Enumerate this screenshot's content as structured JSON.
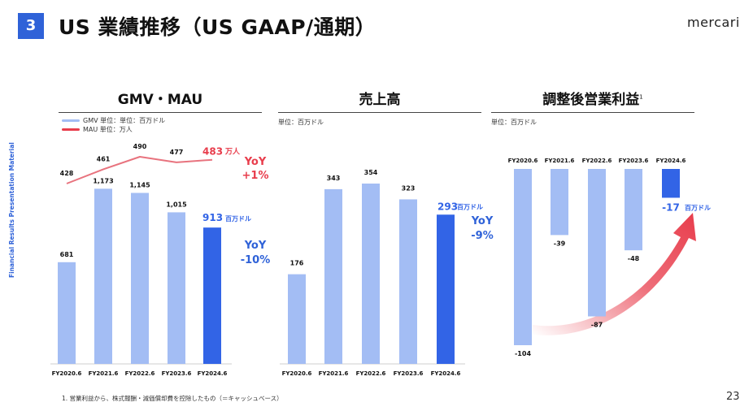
{
  "header": {
    "section_number": "3",
    "title": "US 業績推移（US GAAP/通期）",
    "logo": "mercari"
  },
  "side_label": "Financial Results Presentation Material",
  "footnote": "1. 営業利益から、株式報酬・減価償却費を控除したもの（＝キャッシュベース）",
  "page_number": "23",
  "colors": {
    "bar_light": "#a3bdf4",
    "bar_dark": "#3264e6",
    "mau_line": "#e8737e",
    "accent_red": "#e83d4c",
    "accent_blue": "#2f62d8"
  },
  "chart_data": [
    {
      "type": "bar",
      "title": "GMV・MAU",
      "legend": [
        {
          "name": "GMV 単位：単位：百万ドル",
          "color": "#a3bdf4"
        },
        {
          "name": "MAU 単位：万人",
          "color": "#e83d4c"
        }
      ],
      "categories": [
        "FY2020.6",
        "FY2021.6",
        "FY2022.6",
        "FY2023.6",
        "FY2024.6"
      ],
      "series": [
        {
          "name": "GMV",
          "unit": "百万ドル",
          "values": [
            681,
            1173,
            1145,
            1015,
            913
          ],
          "labels": [
            "681",
            "1,173",
            "1,145",
            "1,015",
            "913"
          ]
        },
        {
          "name": "MAU",
          "type": "line",
          "unit": "万人",
          "values": [
            428,
            461,
            490,
            477,
            483
          ],
          "labels": [
            "428",
            "461",
            "490",
            "477",
            "483"
          ]
        }
      ],
      "last_bar_unit": "百万ドル",
      "last_point_unit": "万人",
      "annotations": [
        {
          "text": [
            "YoY",
            "+1%"
          ],
          "series": "MAU"
        },
        {
          "text": [
            "YoY",
            "-10%"
          ],
          "series": "GMV"
        }
      ],
      "ylim": [
        0,
        1300
      ]
    },
    {
      "type": "bar",
      "title": "売上高",
      "unit_label": "単位：百万ドル",
      "categories": [
        "FY2020.6",
        "FY2021.6",
        "FY2022.6",
        "FY2023.6",
        "FY2024.6"
      ],
      "values": [
        176,
        343,
        354,
        323,
        293
      ],
      "labels": [
        "176",
        "343",
        "354",
        "323",
        "293"
      ],
      "last_bar_unit": "百万ドル",
      "annotation": [
        "YoY",
        "-9%"
      ],
      "ylim": [
        0,
        390
      ]
    },
    {
      "type": "bar",
      "title": "調整後営業利益",
      "title_footnote_mark": "1",
      "unit_label": "単位：百万ドル",
      "categories": [
        "FY2020.6",
        "FY2021.6",
        "FY2022.6",
        "FY2023.6",
        "FY2024.6"
      ],
      "values": [
        -104,
        -39,
        -87,
        -48,
        -17
      ],
      "labels": [
        "-104",
        "-39",
        "-87",
        "-48",
        "-17"
      ],
      "last_bar_unit": "百万ドル",
      "ylim": [
        -110,
        0
      ]
    }
  ]
}
